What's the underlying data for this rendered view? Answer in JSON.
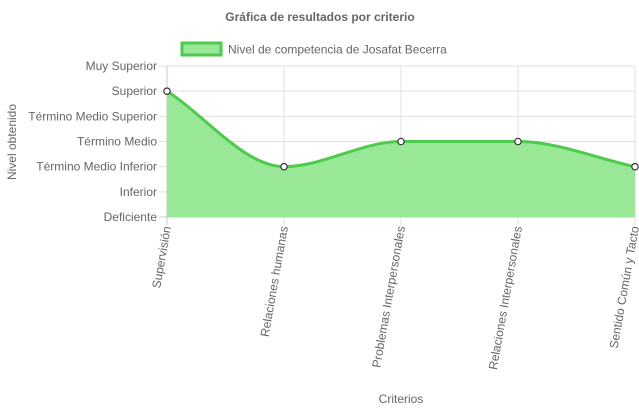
{
  "chart_data": {
    "type": "area",
    "title": "Gráfica de resultados por criterio",
    "xlabel": "Criterios",
    "ylabel": "Nivel obtenido",
    "y_levels": [
      "Deficiente",
      "Inferior",
      "Término Medio Inferior",
      "Término Medio",
      "Término Medio Superior",
      "Superior",
      "Muy Superior"
    ],
    "categories": [
      "Supervisión",
      "Relaciones humanas",
      "Problemas Interpersonales",
      "Relaciones Interpersonales",
      "Sentido Común y Tacto"
    ],
    "series": [
      {
        "name": "Nivel de competencia de Josafat Becerra",
        "values": [
          5,
          2,
          3,
          3,
          2
        ]
      }
    ],
    "ylim": [
      0,
      6
    ],
    "grid": true,
    "legend_position": "top",
    "colors": {
      "fill": "#98e898",
      "line": "#4ccb4c",
      "point_fill": "#ffffff",
      "point_stroke": "#333333"
    }
  }
}
